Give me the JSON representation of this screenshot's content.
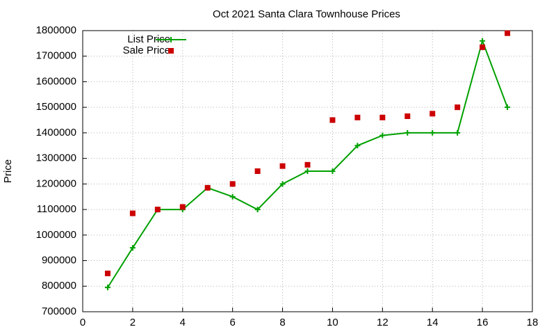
{
  "chart_data": {
    "type": "line",
    "title": "Oct 2021 Santa Clara Townhouse Prices",
    "y_label": "Price",
    "x": [
      1,
      2,
      3,
      4,
      5,
      6,
      7,
      8,
      9,
      10,
      11,
      12,
      13,
      14,
      15,
      16,
      17
    ],
    "series": [
      {
        "name": "List Price",
        "color": "#00a000",
        "mode": "linespoints",
        "values": [
          795000,
          950000,
          1100000,
          1100000,
          1185000,
          1150000,
          1100000,
          1200000,
          1250000,
          1250000,
          1350000,
          1390000,
          1400000,
          1400000,
          1400000,
          1760000,
          1500000
        ]
      },
      {
        "name": "Sale Price",
        "color": "#cc0000",
        "mode": "points",
        "values": [
          850000,
          1085000,
          1100000,
          1110000,
          1185000,
          1200000,
          1250000,
          1270000,
          1275000,
          1450000,
          1460000,
          1460000,
          1465000,
          1475000,
          1500000,
          1735000,
          1790000
        ]
      }
    ],
    "xlim": [
      0,
      18
    ],
    "xticks": [
      0,
      2,
      4,
      6,
      8,
      10,
      12,
      14,
      16,
      18
    ],
    "ylim": [
      700000,
      1800000
    ],
    "yticks": [
      700000,
      800000,
      900000,
      1000000,
      1100000,
      1200000,
      1300000,
      1400000,
      1500000,
      1600000,
      1700000,
      1800000
    ],
    "grid": true,
    "legend": "top-left"
  }
}
